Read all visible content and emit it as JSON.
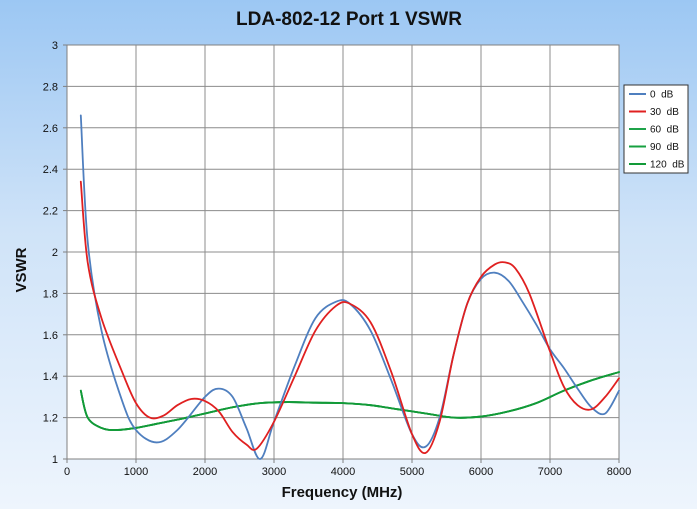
{
  "chart_data": {
    "type": "line",
    "title": "LDA-802-12 Port 1 VSWR",
    "xlabel": "Frequency (MHz)",
    "ylabel": "VSWR",
    "xlim": [
      0,
      8000
    ],
    "ylim": [
      1,
      3
    ],
    "x_ticks": [
      "0",
      "1000",
      "2000",
      "3000",
      "4000",
      "5000",
      "6000",
      "7000",
      "8000"
    ],
    "y_ticks": [
      "1",
      "1.2",
      "1.4",
      "1.6",
      "1.8",
      "2",
      "2.2",
      "2.4",
      "2.6",
      "2.8",
      "3"
    ],
    "grid": true,
    "legend_position": "right",
    "series": [
      {
        "name": "0  dB",
        "color": "#4f7fbf",
        "x": [
          200,
          300,
          500,
          800,
          1000,
          1300,
          1600,
          2000,
          2200,
          2400,
          2600,
          2800,
          3000,
          3300,
          3600,
          3900,
          4100,
          4400,
          4700,
          5000,
          5200,
          5400,
          5600,
          5800,
          6000,
          6200,
          6400,
          6600,
          6800,
          7000,
          7200,
          7400,
          7600,
          7800,
          8000
        ],
        "y": [
          2.66,
          2.05,
          1.62,
          1.28,
          1.14,
          1.08,
          1.14,
          1.3,
          1.34,
          1.3,
          1.15,
          1.0,
          1.18,
          1.45,
          1.68,
          1.76,
          1.75,
          1.62,
          1.38,
          1.12,
          1.06,
          1.2,
          1.5,
          1.75,
          1.87,
          1.9,
          1.86,
          1.76,
          1.65,
          1.53,
          1.44,
          1.34,
          1.25,
          1.22,
          1.33
        ]
      },
      {
        "name": "30  dB",
        "color": "#e02020",
        "x": [
          200,
          300,
          500,
          800,
          1000,
          1200,
          1400,
          1600,
          1800,
          2000,
          2200,
          2400,
          2600,
          2750,
          3000,
          3300,
          3600,
          3900,
          4100,
          4400,
          4700,
          5000,
          5200,
          5400,
          5600,
          5800,
          6000,
          6200,
          6350,
          6500,
          6700,
          7000,
          7200,
          7400,
          7600,
          7800,
          8000
        ],
        "y": [
          2.34,
          1.95,
          1.68,
          1.42,
          1.27,
          1.2,
          1.21,
          1.26,
          1.29,
          1.28,
          1.23,
          1.13,
          1.07,
          1.05,
          1.18,
          1.4,
          1.62,
          1.74,
          1.75,
          1.66,
          1.42,
          1.12,
          1.03,
          1.18,
          1.5,
          1.75,
          1.88,
          1.94,
          1.95,
          1.92,
          1.8,
          1.52,
          1.35,
          1.26,
          1.24,
          1.3,
          1.39
        ]
      },
      {
        "name": "60  dB",
        "color": "#1fa34a",
        "x": [
          200,
          300,
          500,
          700,
          1000,
          1300,
          1600,
          2000,
          2400,
          2800,
          3200,
          3600,
          4000,
          4400,
          4800,
          5200,
          5600,
          6000,
          6400,
          6800,
          7200,
          7600,
          8000
        ],
        "y": [
          1.33,
          1.2,
          1.15,
          1.14,
          1.15,
          1.17,
          1.19,
          1.22,
          1.25,
          1.27,
          1.275,
          1.272,
          1.27,
          1.26,
          1.24,
          1.22,
          1.2,
          1.205,
          1.23,
          1.27,
          1.33,
          1.38,
          1.42
        ]
      },
      {
        "name": "90  dB",
        "color": "#17a040",
        "x": [
          200,
          300,
          500,
          700,
          1000,
          1300,
          1600,
          2000,
          2400,
          2800,
          3200,
          3600,
          4000,
          4400,
          4800,
          5200,
          5600,
          6000,
          6400,
          6800,
          7200,
          7600,
          8000
        ],
        "y": [
          1.33,
          1.2,
          1.15,
          1.14,
          1.15,
          1.17,
          1.19,
          1.22,
          1.25,
          1.27,
          1.275,
          1.272,
          1.27,
          1.26,
          1.24,
          1.22,
          1.2,
          1.205,
          1.23,
          1.27,
          1.33,
          1.38,
          1.42
        ]
      },
      {
        "name": "120  dB",
        "color": "#129a38",
        "x": [
          200,
          300,
          500,
          700,
          1000,
          1300,
          1600,
          2000,
          2400,
          2800,
          3200,
          3600,
          4000,
          4400,
          4800,
          5200,
          5600,
          6000,
          6400,
          6800,
          7200,
          7600,
          8000
        ],
        "y": [
          1.33,
          1.2,
          1.15,
          1.14,
          1.15,
          1.17,
          1.19,
          1.22,
          1.25,
          1.27,
          1.275,
          1.272,
          1.27,
          1.26,
          1.24,
          1.22,
          1.2,
          1.205,
          1.23,
          1.27,
          1.33,
          1.38,
          1.42
        ]
      }
    ]
  }
}
